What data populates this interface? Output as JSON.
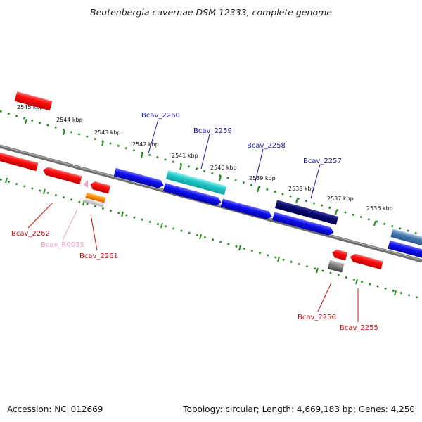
{
  "title": "Beutenbergia cavernae DSM 12333, complete genome",
  "footer": {
    "accession": "Accession: NC_012669",
    "summary": "Topology: circular; Length: 4,669,183 bp; Genes: 4,250"
  },
  "colors": {
    "backbone": "#8a8a8a",
    "ruler": "#1f8a1f",
    "forward_label": "#1a1aa6",
    "reverse_label": "#cc1111",
    "rna_label": "#f0a0c8"
  },
  "ruler_ticks": [
    {
      "label": "2545 kbp"
    },
    {
      "label": "2544 kbp"
    },
    {
      "label": "2543 kbp"
    },
    {
      "label": "2542 kbp"
    },
    {
      "label": "2541 kbp"
    },
    {
      "label": "2540 kbp"
    },
    {
      "label": "2539 kbp"
    },
    {
      "label": "2538 kbp"
    },
    {
      "label": "2537 kbp"
    },
    {
      "label": "2536 kbp"
    }
  ],
  "labels": {
    "bcav_2260": "Bcav_2260",
    "bcav_2259": "Bcav_2259",
    "bcav_2258": "Bcav_2258",
    "bcav_2257": "Bcav_2257",
    "bcav_2262": "Bcav_2262",
    "bcav_r0035": "Bcav_R0035",
    "bcav_2261": "Bcav_2261",
    "bcav_2256": "Bcav_2256",
    "bcav_2255": "Bcav_2255"
  }
}
